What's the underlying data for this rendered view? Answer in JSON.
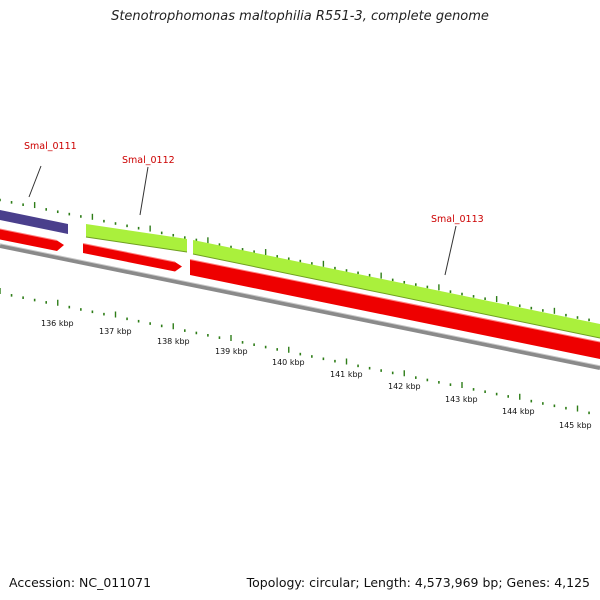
{
  "title": "Stenotrophomonas maltophilia R551-3, complete genome",
  "footer": {
    "accession": "Accession: NC_011071",
    "stats": "Topology: circular; Length: 4,573,969 bp; Genes: 4,125"
  },
  "colors": {
    "backbone": "#8a8a8a",
    "cds_strand": "#ee0000",
    "gene_forward": "#aaf03c",
    "gene_reverse": "#4a3f8c",
    "tick": "#2e7d18",
    "label": "#cc0000"
  },
  "gene_labels": [
    {
      "id": "smal-0111",
      "text": "Smal_0111"
    },
    {
      "id": "smal-0112",
      "text": "Smal_0112"
    },
    {
      "id": "smal-0113",
      "text": "Smal_0113"
    }
  ],
  "scale_labels": [
    "136 kbp",
    "137 kbp",
    "138 kbp",
    "139 kbp",
    "140 kbp",
    "141 kbp",
    "142 kbp",
    "143 kbp",
    "144 kbp",
    "145 kbp"
  ]
}
